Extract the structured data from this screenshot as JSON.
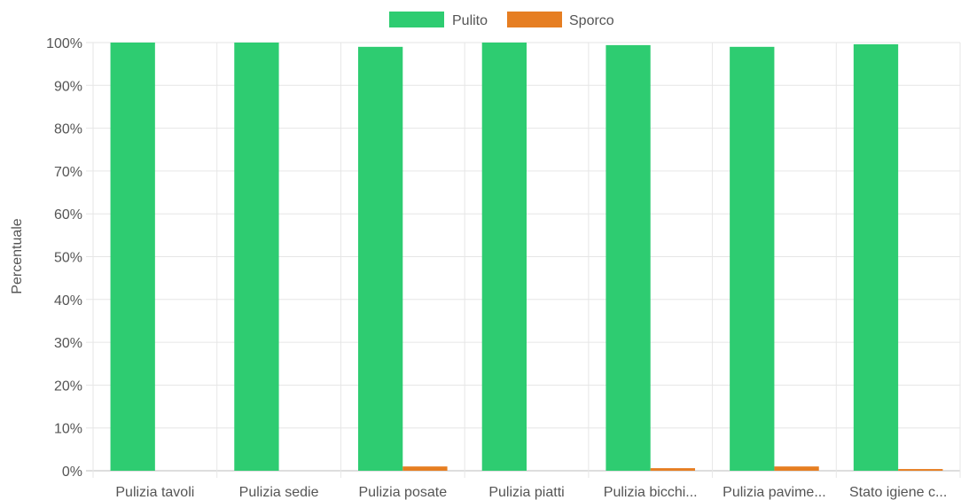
{
  "chart_data": {
    "type": "bar",
    "title": "",
    "xlabel": "",
    "ylabel": "Percentuale",
    "ylim": [
      0,
      100
    ],
    "yticks": [
      "0%",
      "10%",
      "20%",
      "30%",
      "40%",
      "50%",
      "60%",
      "70%",
      "80%",
      "90%",
      "100%"
    ],
    "categories": [
      "Pulizia tavoli",
      "Pulizia sedie",
      "Pulizia posate",
      "Pulizia piatti",
      "Pulizia bicchi...",
      "Pulizia pavime...",
      "Stato igiene c..."
    ],
    "series": [
      {
        "name": "Pulito",
        "color": "#2ecc71",
        "values": [
          100,
          100,
          99,
          100,
          99.4,
          99,
          99.6
        ]
      },
      {
        "name": "Sporco",
        "color": "#e67e22",
        "values": [
          0,
          0,
          1,
          0,
          0.6,
          1,
          0.4
        ]
      }
    ],
    "legend_position": "top-center",
    "grid": true
  }
}
